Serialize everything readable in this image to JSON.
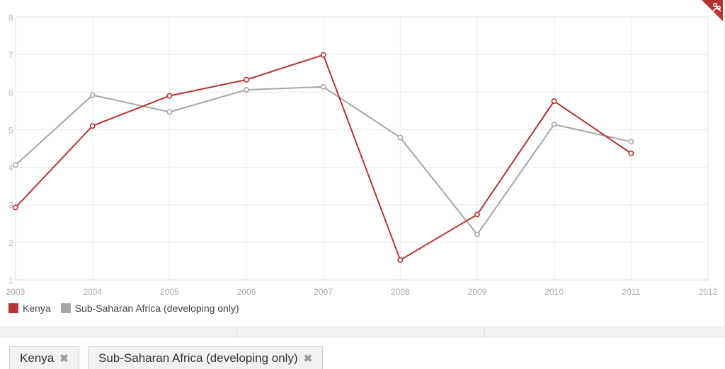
{
  "chart_data": {
    "type": "line",
    "x": [
      2003,
      2004,
      2005,
      2006,
      2007,
      2008,
      2009,
      2010,
      2011
    ],
    "x_ticks": [
      "2003",
      "2004",
      "2005",
      "2006",
      "2007",
      "2008",
      "2009",
      "2010",
      "2011",
      "2012"
    ],
    "y_ticks": [
      "1",
      "2",
      "3",
      "4",
      "5",
      "6",
      "7",
      "8"
    ],
    "xlim": [
      2003,
      2012
    ],
    "ylim": [
      1,
      8
    ],
    "grid": true,
    "legend_position": "bottom-left",
    "series": [
      {
        "name": "Kenya",
        "color": "#b83232",
        "values": [
          2.93,
          5.1,
          5.9,
          6.33,
          6.99,
          1.53,
          2.74,
          5.76,
          4.37
        ]
      },
      {
        "name": "Sub-Saharan Africa (developing only)",
        "color": "#a6a6a6",
        "values": [
          4.06,
          5.92,
          5.47,
          6.06,
          6.14,
          4.79,
          2.21,
          5.14,
          4.68
        ]
      }
    ]
  },
  "chips": [
    {
      "label": "Kenya",
      "close": "✖"
    },
    {
      "label": "Sub-Saharan Africa (developing only)",
      "close": "✖"
    }
  ],
  "corner_icon": "scissors-icon"
}
